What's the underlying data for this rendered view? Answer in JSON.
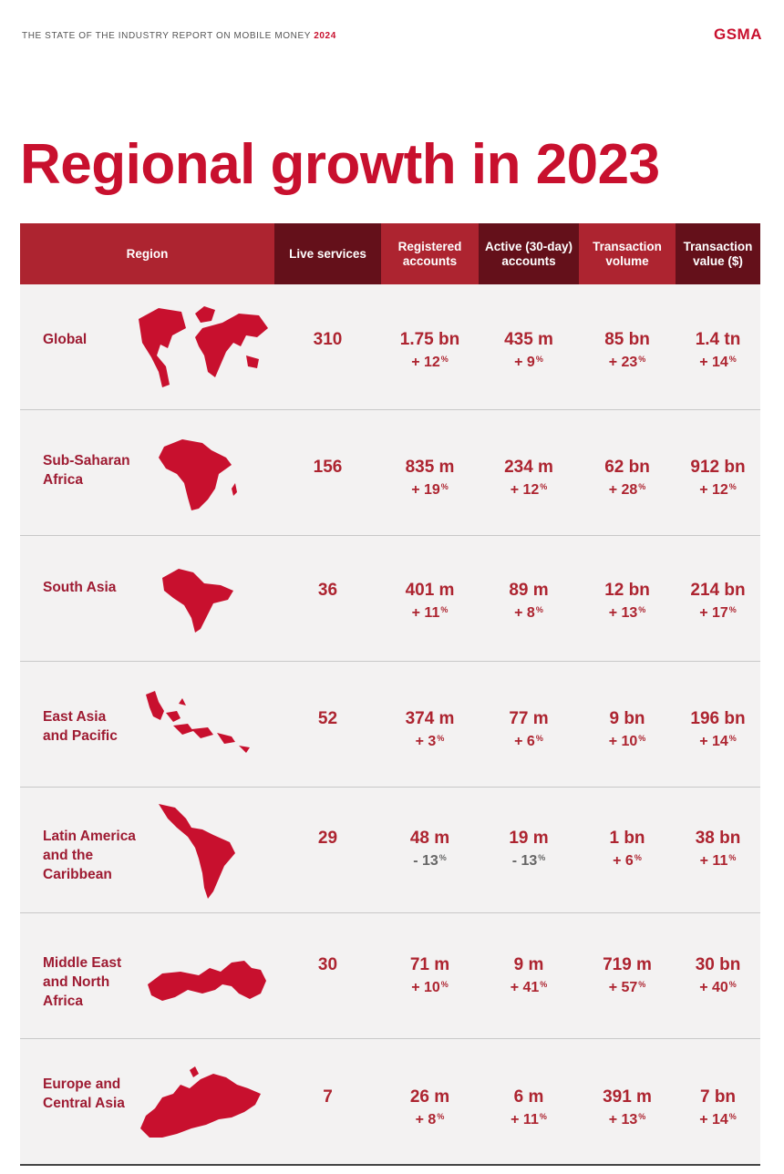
{
  "header": {
    "report_title": "THE STATE OF THE INDUSTRY REPORT ON MOBILE MONEY",
    "report_year": "2024",
    "logo": "GSMA"
  },
  "page_title": "Regional growth in 2023",
  "table": {
    "columns": [
      "Region",
      "Live services",
      "Registered accounts",
      "Active (30-day) accounts",
      "Transaction volume",
      "Transaction value ($)"
    ],
    "rows": [
      {
        "region": "Global",
        "live": "310",
        "reg": "1.75 bn",
        "reg_chg": "+ 12",
        "act": "435 m",
        "act_chg": "+ 9",
        "vol": "85 bn",
        "vol_chg": "+ 23",
        "valx": "1.4 tn",
        "valx_chg": "+ 14"
      },
      {
        "region": "Sub-Saharan\nAfrica",
        "live": "156",
        "reg": "835 m",
        "reg_chg": "+ 19",
        "act": "234 m",
        "act_chg": "+ 12",
        "vol": "62 bn",
        "vol_chg": "+ 28",
        "valx": "912 bn",
        "valx_chg": "+ 12"
      },
      {
        "region": "South Asia",
        "live": "36",
        "reg": "401 m",
        "reg_chg": "+ 11",
        "act": "89 m",
        "act_chg": "+ 8",
        "vol": "12 bn",
        "vol_chg": "+ 13",
        "valx": "214 bn",
        "valx_chg": "+ 17"
      },
      {
        "region": "East Asia\nand Pacific",
        "live": "52",
        "reg": "374 m",
        "reg_chg": "+ 3",
        "act": "77 m",
        "act_chg": "+ 6",
        "vol": "9 bn",
        "vol_chg": "+ 10",
        "valx": "196 bn",
        "valx_chg": "+ 14"
      },
      {
        "region": "Latin America\nand the\nCaribbean",
        "live": "29",
        "reg": "48 m",
        "reg_chg": "- 13",
        "act": "19 m",
        "act_chg": "- 13",
        "vol": "1 bn",
        "vol_chg": "+ 6",
        "valx": "38 bn",
        "valx_chg": "+ 11"
      },
      {
        "region": "Middle East\nand North\nAfrica",
        "live": "30",
        "reg": "71 m",
        "reg_chg": "+ 10",
        "act": "9 m",
        "act_chg": "+ 41",
        "vol": "719 m",
        "vol_chg": "+ 57",
        "valx": "30 bn",
        "valx_chg": "+ 40"
      },
      {
        "region": "Europe and\nCentral Asia",
        "live": "7",
        "reg": "26 m",
        "reg_chg": "+ 8",
        "act": "6 m",
        "act_chg": "+ 11",
        "vol": "391 m",
        "vol_chg": "+ 13",
        "valx": "7 bn",
        "valx_chg": "+ 14"
      }
    ],
    "percent_sign": "%"
  },
  "colors": {
    "brand_red": "#c8102e",
    "header_red": "#ad2430",
    "header_dark": "#64101a",
    "row_bg": "#f3f2f2"
  }
}
